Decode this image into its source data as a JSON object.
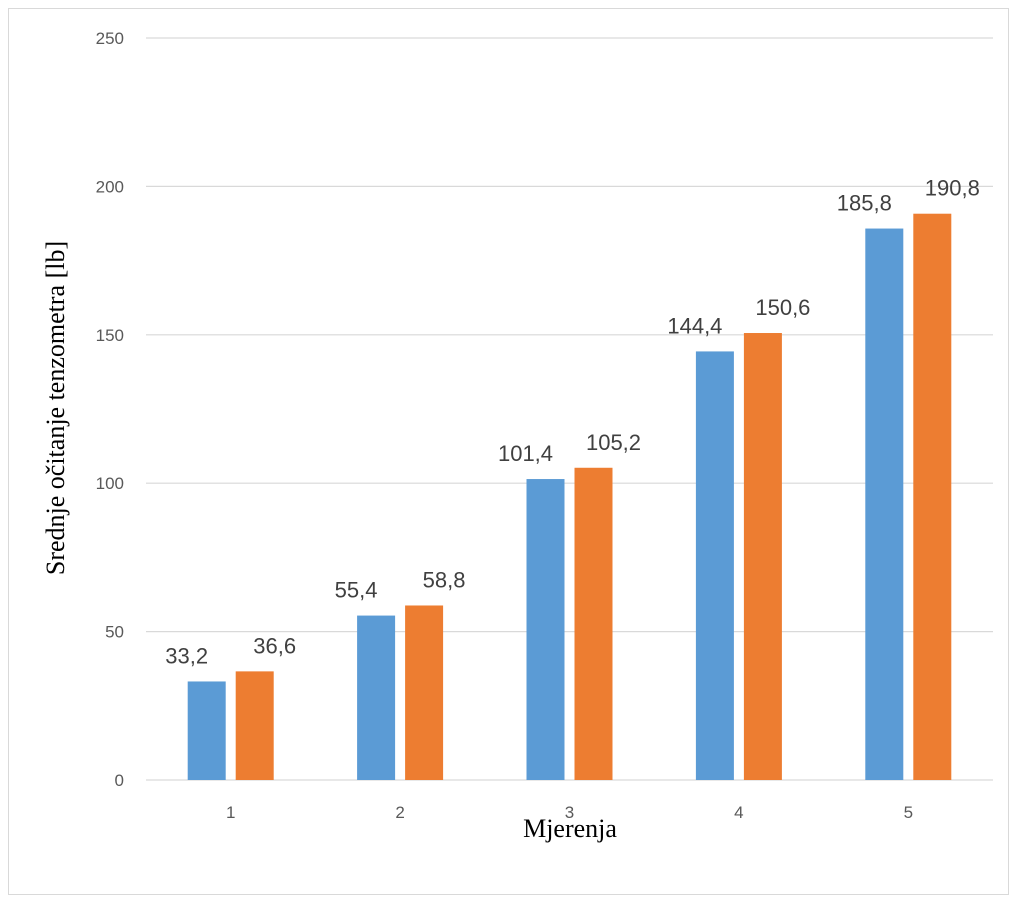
{
  "chart_data": {
    "type": "bar",
    "title": "",
    "xlabel": "Mjerenja",
    "ylabel": "Srednje očitanje tenzometra [lb]",
    "categories": [
      "1",
      "2",
      "3",
      "4",
      "5"
    ],
    "series": [
      {
        "values": [
          33.2,
          55.4,
          101.4,
          144.4,
          185.8
        ],
        "labels": [
          "33,2",
          "55,4",
          "101,4",
          "144,4",
          "185,8"
        ],
        "color": "#5b9bd5"
      },
      {
        "values": [
          36.6,
          58.8,
          105.2,
          150.6,
          190.8
        ],
        "labels": [
          "36,6",
          "58,8",
          "105,2",
          "150,6",
          "190,8"
        ],
        "color": "#ed7d31"
      }
    ],
    "yticks": [
      "0",
      "50",
      "100",
      "150",
      "200",
      "250"
    ],
    "ylim": [
      0,
      250
    ],
    "grid": true,
    "legend": "none"
  },
  "colors": {
    "gridline": "#d9d9d9",
    "axis": "#d9d9d9"
  }
}
